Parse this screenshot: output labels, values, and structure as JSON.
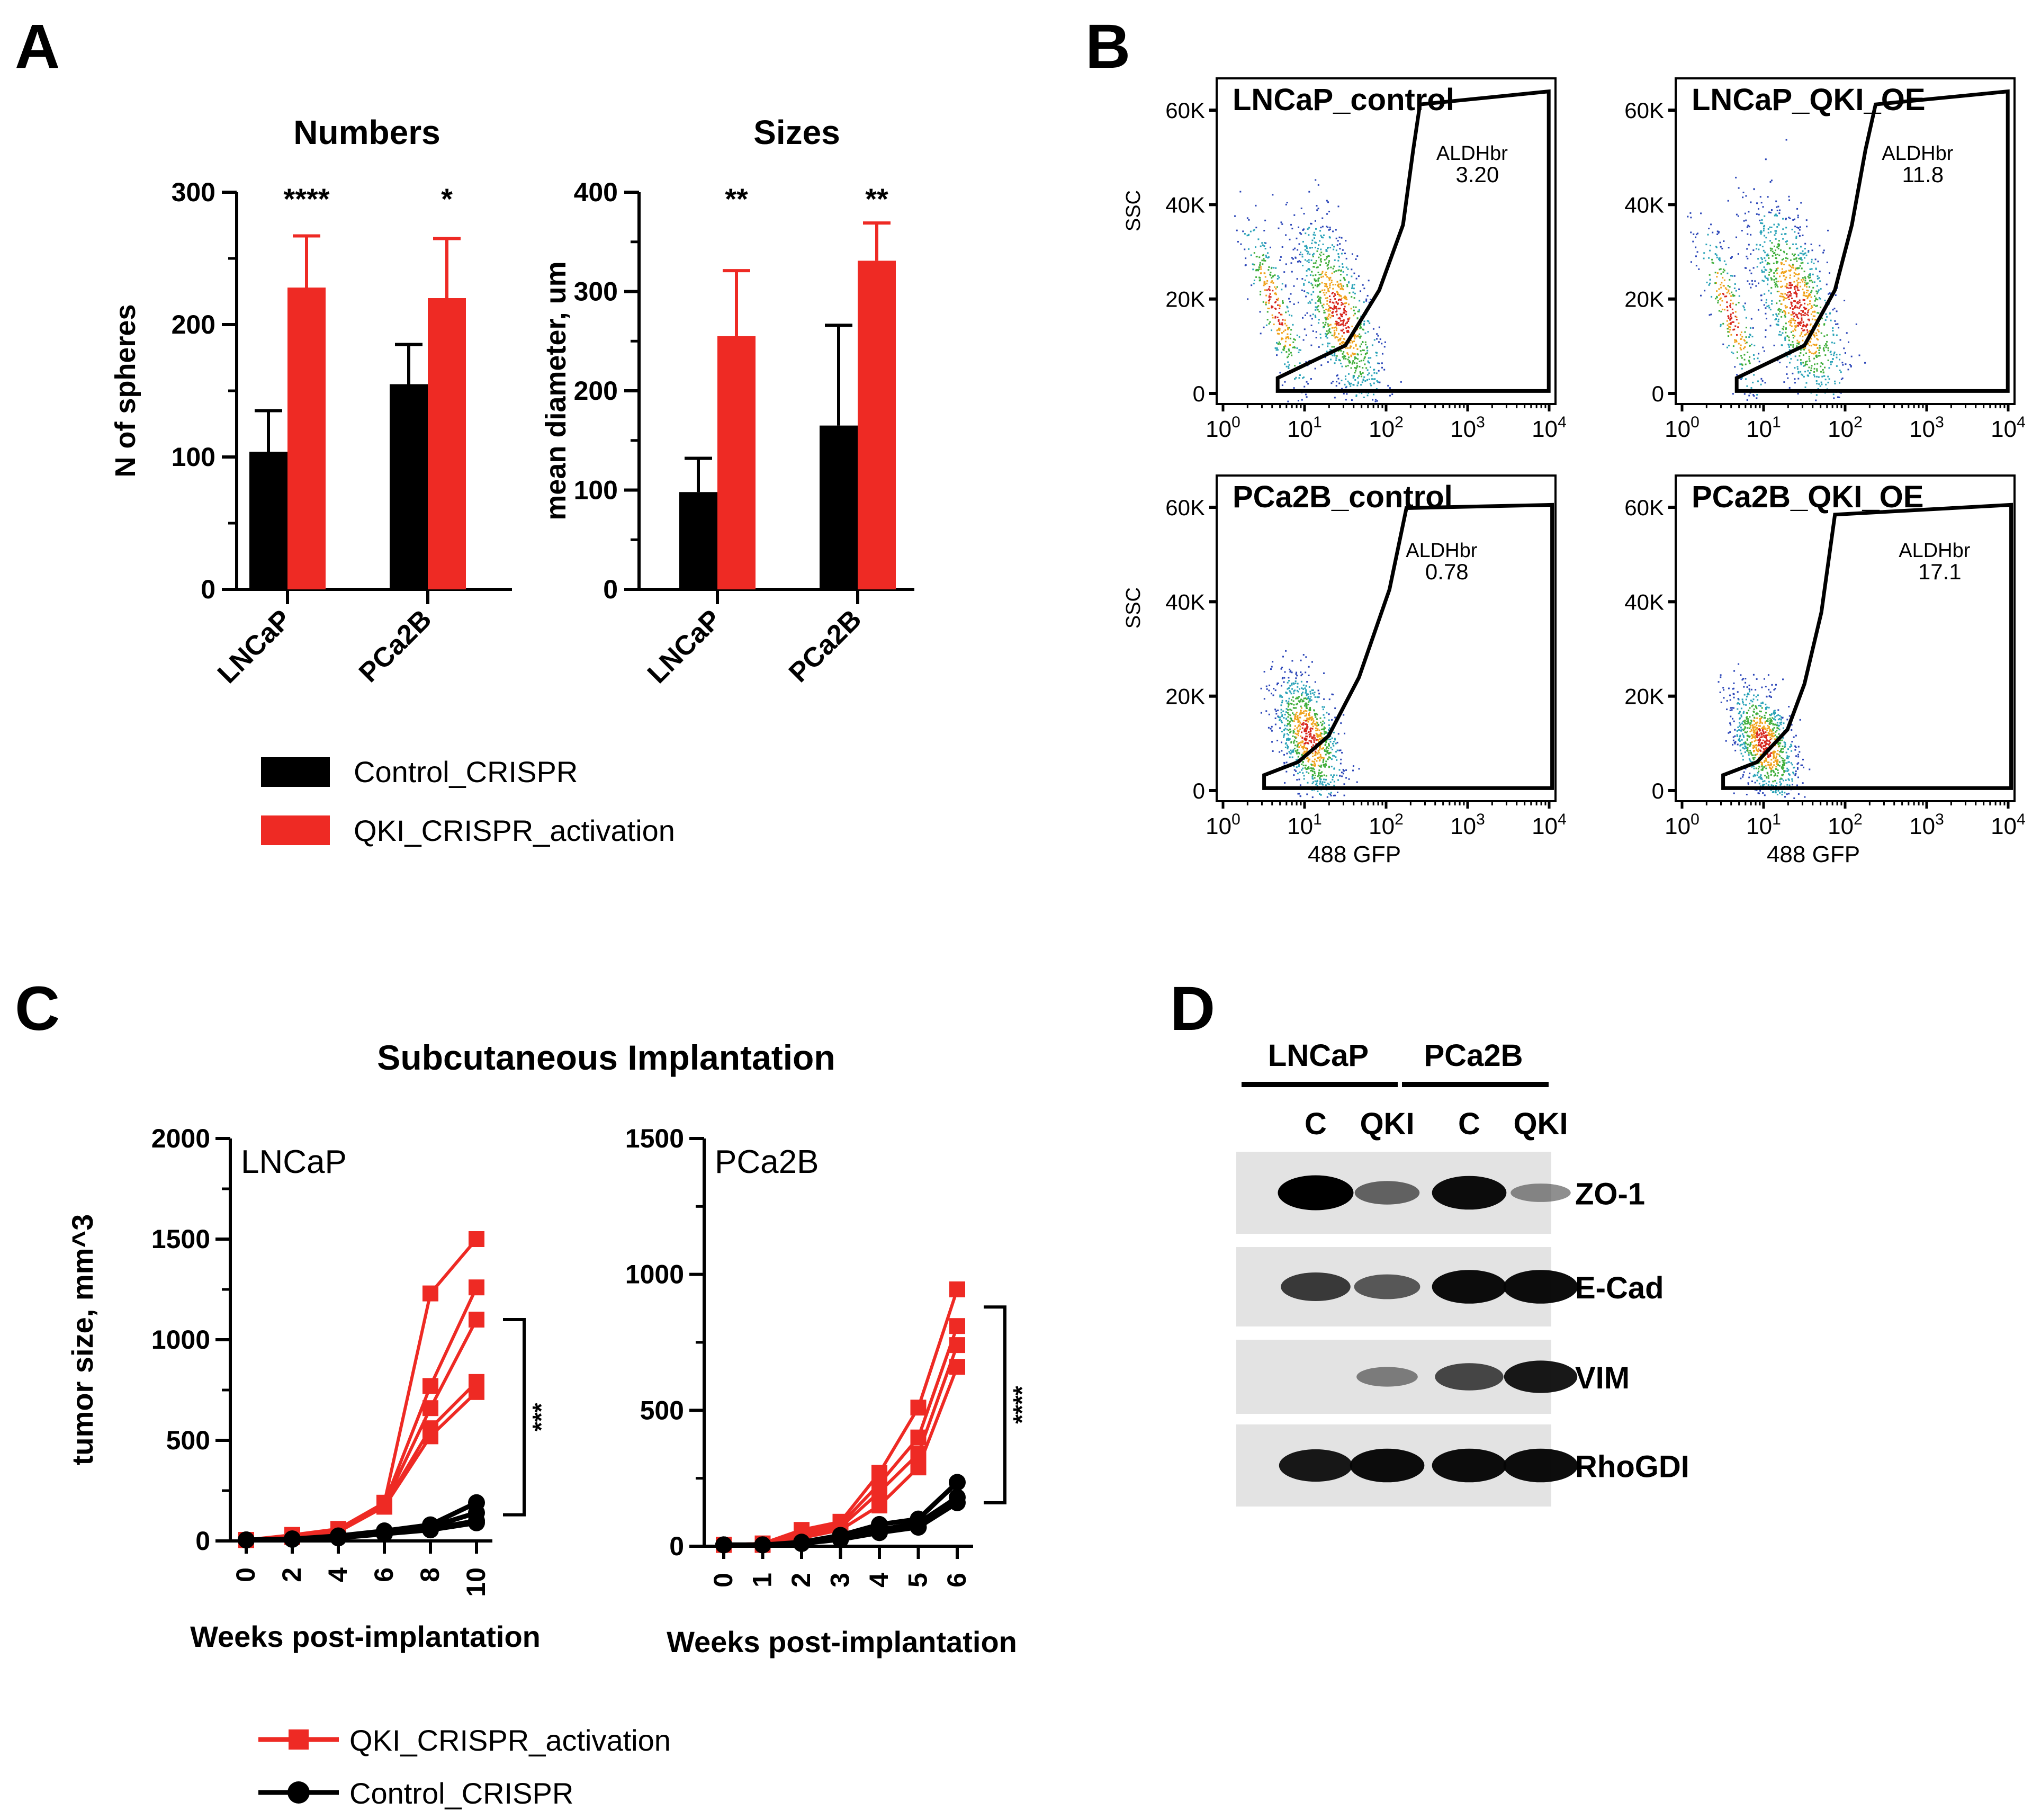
{
  "colors": {
    "control": "#000000",
    "qki": "#ee2a24",
    "axis": "#000000"
  },
  "panel_letters": [
    "A",
    "B",
    "C",
    "D"
  ],
  "chart_data": [
    {
      "id": "A1",
      "type": "bar",
      "title": "Numbers",
      "ylabel": "N of spheres",
      "xlabel": "",
      "categories": [
        "LNCaP",
        "PCa2B"
      ],
      "ylim": [
        0,
        300
      ],
      "yticks": [
        "0",
        "100",
        "200",
        "300"
      ],
      "yticks_values": [
        0,
        100,
        200,
        300
      ],
      "series": [
        {
          "name": "Control_CRISPR",
          "values": [
            104,
            155
          ],
          "errors": [
            31,
            30
          ]
        },
        {
          "name": "QKI_CRISPR_activation",
          "values": [
            228,
            220
          ],
          "errors": [
            39,
            45
          ]
        }
      ],
      "significance": [
        "****",
        "*"
      ]
    },
    {
      "id": "A2",
      "type": "bar",
      "title": "Sizes",
      "ylabel": "mean diameter, um",
      "xlabel": "",
      "categories": [
        "LNCaP",
        "PCa2B"
      ],
      "ylim": [
        0,
        400
      ],
      "yticks": [
        "0",
        "100",
        "200",
        "300",
        "400"
      ],
      "yticks_values": [
        0,
        100,
        200,
        300,
        400
      ],
      "series": [
        {
          "name": "Control_CRISPR",
          "values": [
            98,
            165
          ],
          "errors": [
            34,
            101
          ]
        },
        {
          "name": "QKI_CRISPR_activation",
          "values": [
            255,
            331
          ],
          "errors": [
            66,
            38
          ]
        }
      ],
      "significance": [
        "**",
        "**"
      ]
    },
    {
      "id": "B",
      "type": "scatter",
      "description_free": true,
      "xlabel": "488 GFP",
      "ylabel": "SSC",
      "xticks": [
        "10",
        "10",
        "10",
        "10",
        "10"
      ],
      "xtick_exponents": [
        "0",
        "1",
        "2",
        "3",
        "4"
      ],
      "yticks": [
        "0",
        "20K",
        "40K",
        "60K"
      ],
      "yticks_values": [
        0,
        20000,
        40000,
        60000
      ],
      "gate_label": "ALDHbr",
      "plots": [
        {
          "title": "LNCaP_control",
          "gate_value": "3.20"
        },
        {
          "title": "LNCaP_QKI_OE",
          "gate_value": "11.8"
        },
        {
          "title": "PCa2B_control",
          "gate_value": "0.78"
        },
        {
          "title": "PCa2B_QKI_OE",
          "gate_value": "17.1"
        }
      ]
    },
    {
      "id": "C1",
      "type": "line",
      "title": "Subcutaneous Implantation",
      "inset_label": "LNCaP",
      "xlabel": "Weeks post-implantation",
      "ylabel": "tumor size, mm^3",
      "x": [
        0,
        2,
        4,
        6,
        8,
        10
      ],
      "xticks": [
        "0",
        "2",
        "4",
        "6",
        "8",
        "10"
      ],
      "ylim": [
        0,
        2000
      ],
      "yticks": [
        "0",
        "500",
        "1000",
        "1500",
        "2000"
      ],
      "yticks_values": [
        0,
        500,
        1000,
        1500,
        2000
      ],
      "significance": "***",
      "series": [
        {
          "name": "QKI_CRISPR_activation",
          "values": [
            5,
            30,
            60,
            190,
            1230,
            1500
          ]
        },
        {
          "name": "QKI_CRISPR_activation",
          "values": [
            5,
            25,
            55,
            185,
            770,
            1260
          ]
        },
        {
          "name": "QKI_CRISPR_activation",
          "values": [
            5,
            25,
            50,
            180,
            660,
            1100
          ]
        },
        {
          "name": "QKI_CRISPR_activation",
          "values": [
            5,
            20,
            50,
            175,
            560,
            790
          ]
        },
        {
          "name": "QKI_CRISPR_activation",
          "values": [
            5,
            20,
            45,
            170,
            520,
            740
          ]
        },
        {
          "name": "Control_CRISPR",
          "values": [
            5,
            10,
            25,
            50,
            80,
            190
          ]
        },
        {
          "name": "Control_CRISPR",
          "values": [
            5,
            10,
            20,
            45,
            70,
            140
          ]
        },
        {
          "name": "Control_CRISPR",
          "values": [
            5,
            10,
            20,
            40,
            60,
            100
          ]
        },
        {
          "name": "Control_CRISPR",
          "values": [
            5,
            8,
            15,
            35,
            55,
            90
          ]
        }
      ]
    },
    {
      "id": "C2",
      "type": "line",
      "inset_label": "PCa2B",
      "xlabel": "Weeks post-implantation",
      "ylabel": "",
      "x": [
        0,
        1,
        2,
        3,
        4,
        5,
        6
      ],
      "xticks": [
        "0",
        "1",
        "2",
        "3",
        "4",
        "5",
        "6"
      ],
      "ylim": [
        0,
        1500
      ],
      "yticks": [
        "0",
        "500",
        "1000",
        "1500"
      ],
      "yticks_values": [
        0,
        500,
        1000,
        1500
      ],
      "significance": "****",
      "series": [
        {
          "name": "QKI_CRISPR_activation",
          "values": [
            5,
            10,
            60,
            90,
            270,
            510,
            945
          ]
        },
        {
          "name": "QKI_CRISPR_activation",
          "values": [
            5,
            10,
            50,
            80,
            230,
            400,
            810
          ]
        },
        {
          "name": "QKI_CRISPR_activation",
          "values": [
            5,
            10,
            40,
            70,
            200,
            340,
            740
          ]
        },
        {
          "name": "QKI_CRISPR_activation",
          "values": [
            5,
            5,
            30,
            60,
            150,
            290,
            660
          ]
        },
        {
          "name": "Control_CRISPR",
          "values": [
            5,
            5,
            15,
            40,
            80,
            100,
            235
          ]
        },
        {
          "name": "Control_CRISPR",
          "values": [
            5,
            5,
            10,
            30,
            60,
            85,
            180
          ]
        },
        {
          "name": "Control_CRISPR",
          "values": [
            5,
            5,
            10,
            25,
            50,
            70,
            160
          ]
        }
      ]
    }
  ],
  "panelA": {
    "legend": [
      "Control_CRISPR",
      "QKI_CRISPR_activation"
    ]
  },
  "panelC": {
    "legend": [
      "QKI_CRISPR_activation",
      "Control_CRISPR"
    ]
  },
  "panelD": {
    "groups": [
      "LNCaP",
      "PCa2B"
    ],
    "lanes": [
      "C",
      "QKI",
      "C",
      "QKI"
    ],
    "blots": [
      {
        "label": "ZO-1",
        "intensity": [
          1.0,
          0.55,
          0.95,
          0.35
        ]
      },
      {
        "label": "E-Cad",
        "intensity": [
          0.75,
          0.6,
          0.95,
          0.95
        ]
      },
      {
        "label": "VIM",
        "intensity": [
          0.0,
          0.4,
          0.7,
          0.9
        ]
      },
      {
        "label": "RhoGDI",
        "intensity": [
          0.9,
          0.95,
          0.95,
          0.95
        ]
      }
    ]
  }
}
